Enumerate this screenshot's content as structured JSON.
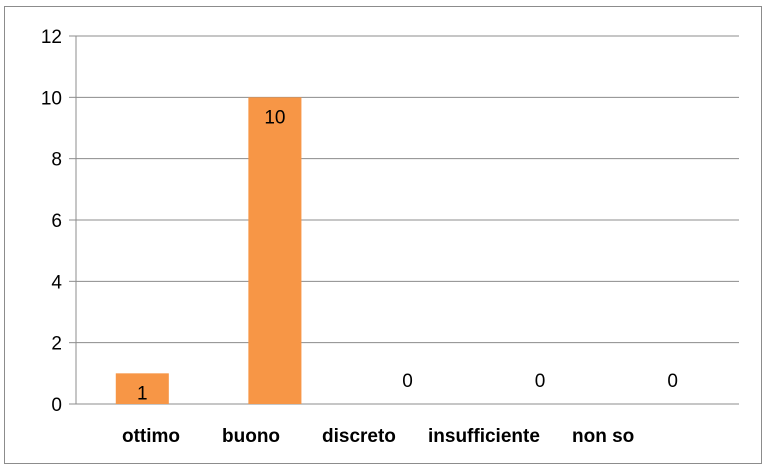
{
  "chart_data": {
    "type": "bar",
    "title": "",
    "xlabel": "",
    "ylabel": "",
    "categories": [
      "ottimo",
      "buono",
      "discreto",
      "insufficiente",
      "non so"
    ],
    "values": [
      1,
      10,
      0,
      0,
      0
    ],
    "data_labels": [
      "1",
      "10",
      "0",
      "0",
      "0"
    ],
    "ylim": [
      0,
      12
    ],
    "yticks": [
      0,
      2,
      4,
      6,
      8,
      10,
      12
    ],
    "grid": true,
    "legend": "none",
    "bar_color": "#F79646"
  }
}
